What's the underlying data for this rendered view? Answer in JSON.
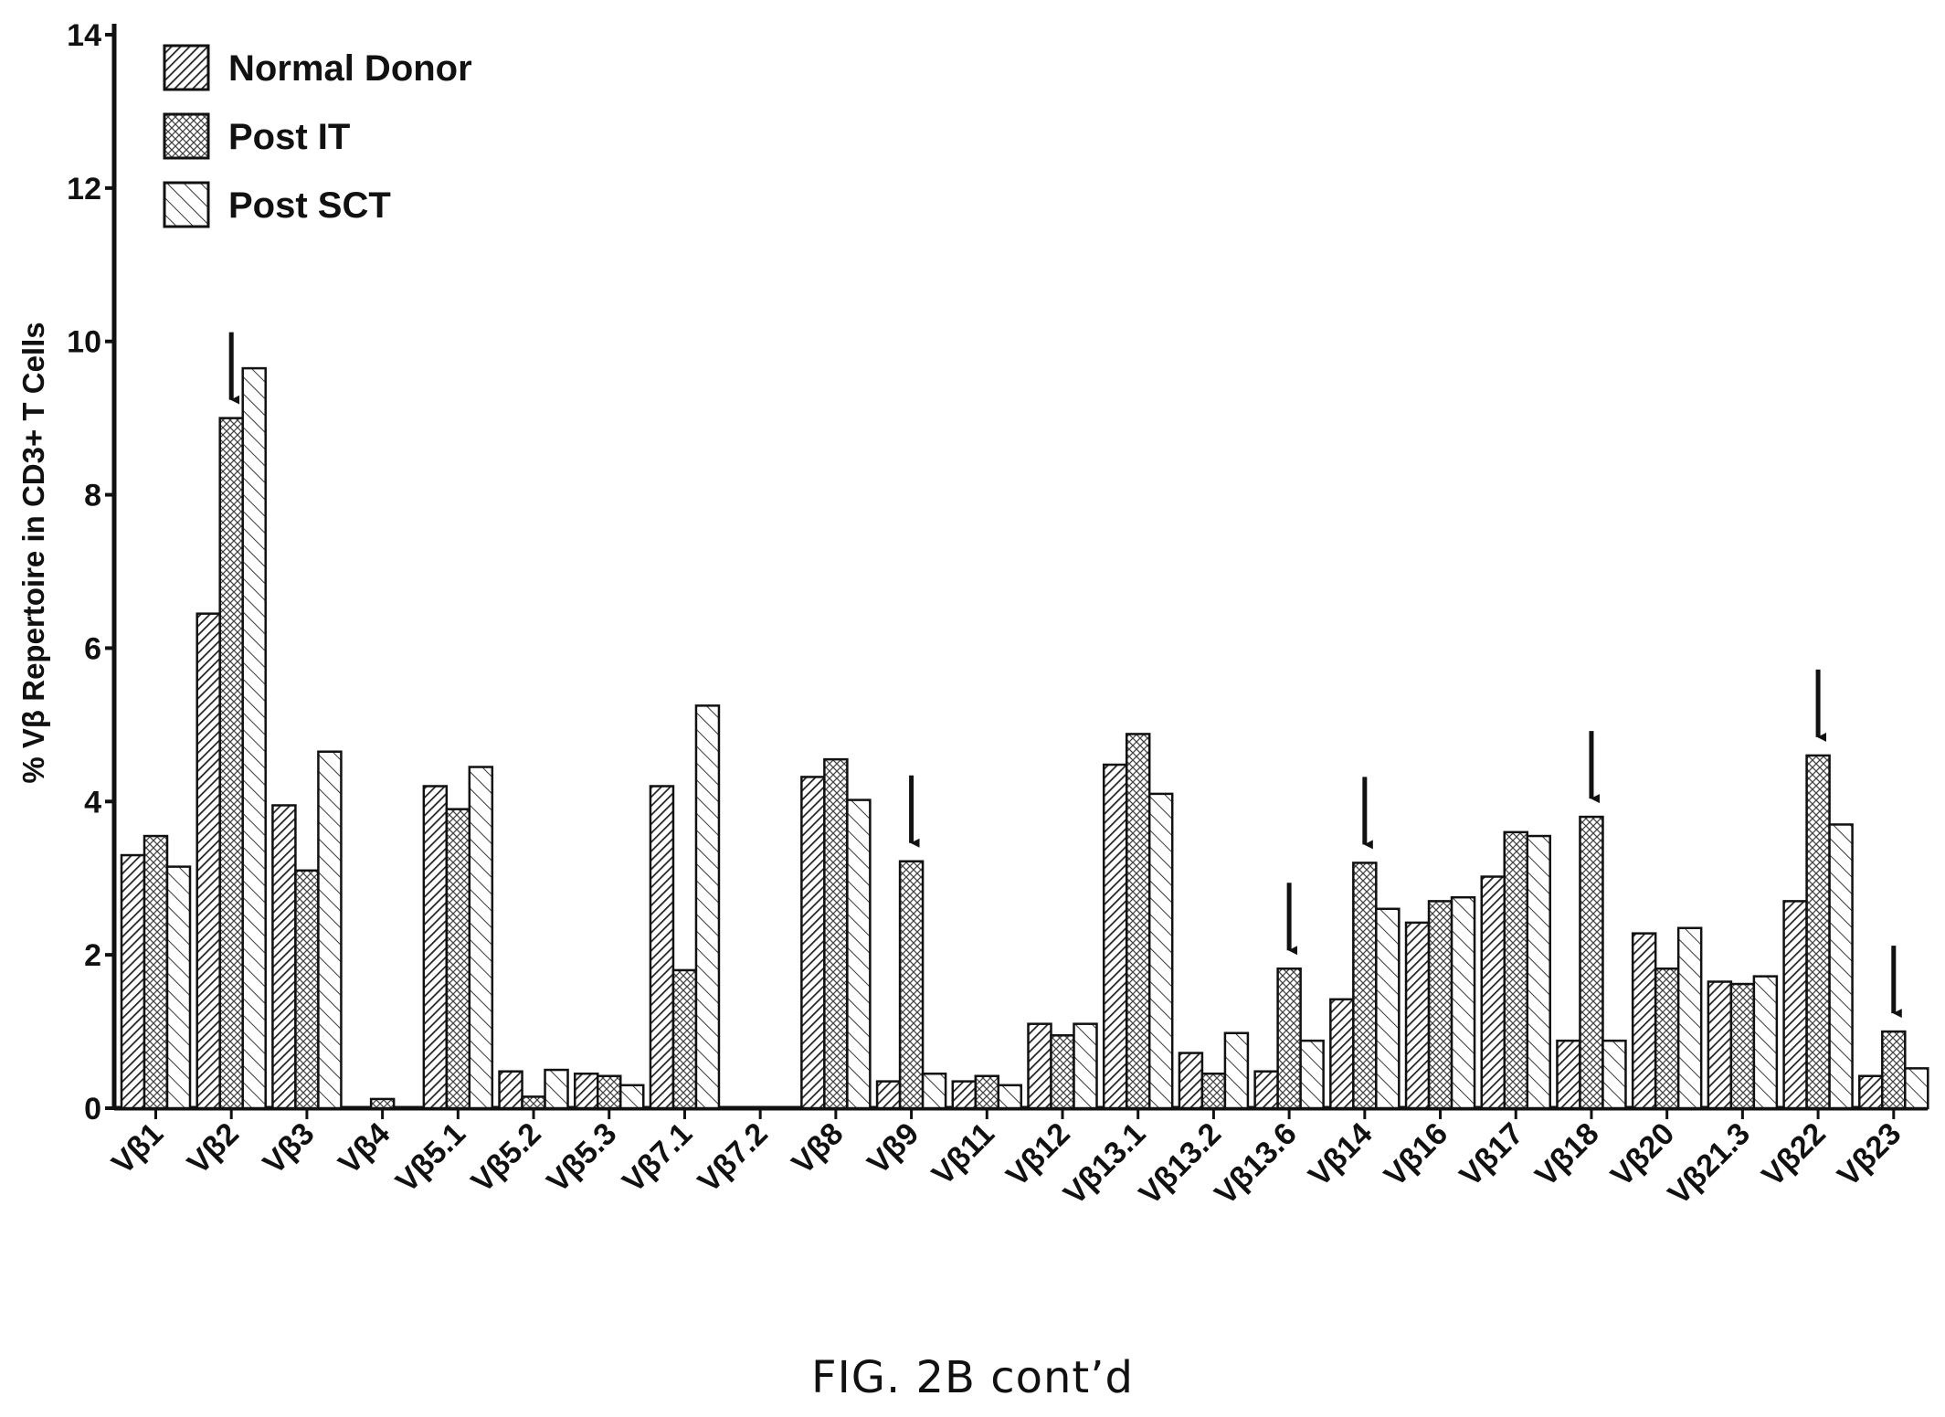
{
  "caption": "FIG. 2B cont’d",
  "chart_data": {
    "type": "bar",
    "title": "",
    "xlabel": "",
    "ylabel": "% Vβ Repertoire in CD3+ T Cells",
    "ylim": [
      0,
      14
    ],
    "yticks": [
      "0",
      "2",
      "4",
      "6",
      "8",
      "10",
      "12",
      "14"
    ],
    "legend_position": "top-left",
    "categories": [
      "Vβ1",
      "Vβ2",
      "Vβ3",
      "Vβ4",
      "Vβ5.1",
      "Vβ5.2",
      "Vβ5.3",
      "Vβ7.1",
      "Vβ7.2",
      "Vβ8",
      "Vβ9",
      "Vβ11",
      "Vβ12",
      "Vβ13.1",
      "Vβ13.2",
      "Vβ13.6",
      "Vβ14",
      "Vβ16",
      "Vβ17",
      "Vβ18",
      "Vβ20",
      "Vβ21.3",
      "Vβ22",
      "Vβ23"
    ],
    "series": [
      {
        "name": "Normal Donor",
        "pattern": "dense-diagonal",
        "values": [
          3.3,
          6.45,
          3.95,
          0,
          4.2,
          0.48,
          0.45,
          4.2,
          0,
          4.32,
          0.35,
          0.35,
          1.1,
          4.48,
          0.72,
          0.48,
          1.42,
          2.42,
          3.02,
          0.88,
          2.28,
          1.65,
          2.7,
          0.42
        ]
      },
      {
        "name": "Post IT",
        "pattern": "crosshatch",
        "values": [
          3.55,
          9.0,
          3.1,
          0.12,
          3.9,
          0.15,
          0.42,
          1.8,
          0,
          4.55,
          3.22,
          0.42,
          0.95,
          4.88,
          0.45,
          1.82,
          3.2,
          2.7,
          3.6,
          3.8,
          1.82,
          1.62,
          4.6,
          1.0
        ]
      },
      {
        "name": "Post SCT",
        "pattern": "sparse-diagonal",
        "values": [
          3.15,
          9.65,
          4.65,
          0,
          4.45,
          0.5,
          0.3,
          5.25,
          0,
          4.02,
          0.45,
          0.3,
          1.1,
          4.1,
          0.98,
          0.88,
          2.6,
          2.75,
          3.55,
          0.88,
          2.35,
          1.72,
          3.7,
          0.52
        ]
      }
    ],
    "arrow_categories": [
      "Vβ2",
      "Vβ9",
      "Vβ13.6",
      "Vβ14",
      "Vβ18",
      "Vβ22",
      "Vβ23"
    ],
    "colors": {
      "bar_stroke": "#111111",
      "hatch": "#222222",
      "background": "#ffffff"
    }
  }
}
